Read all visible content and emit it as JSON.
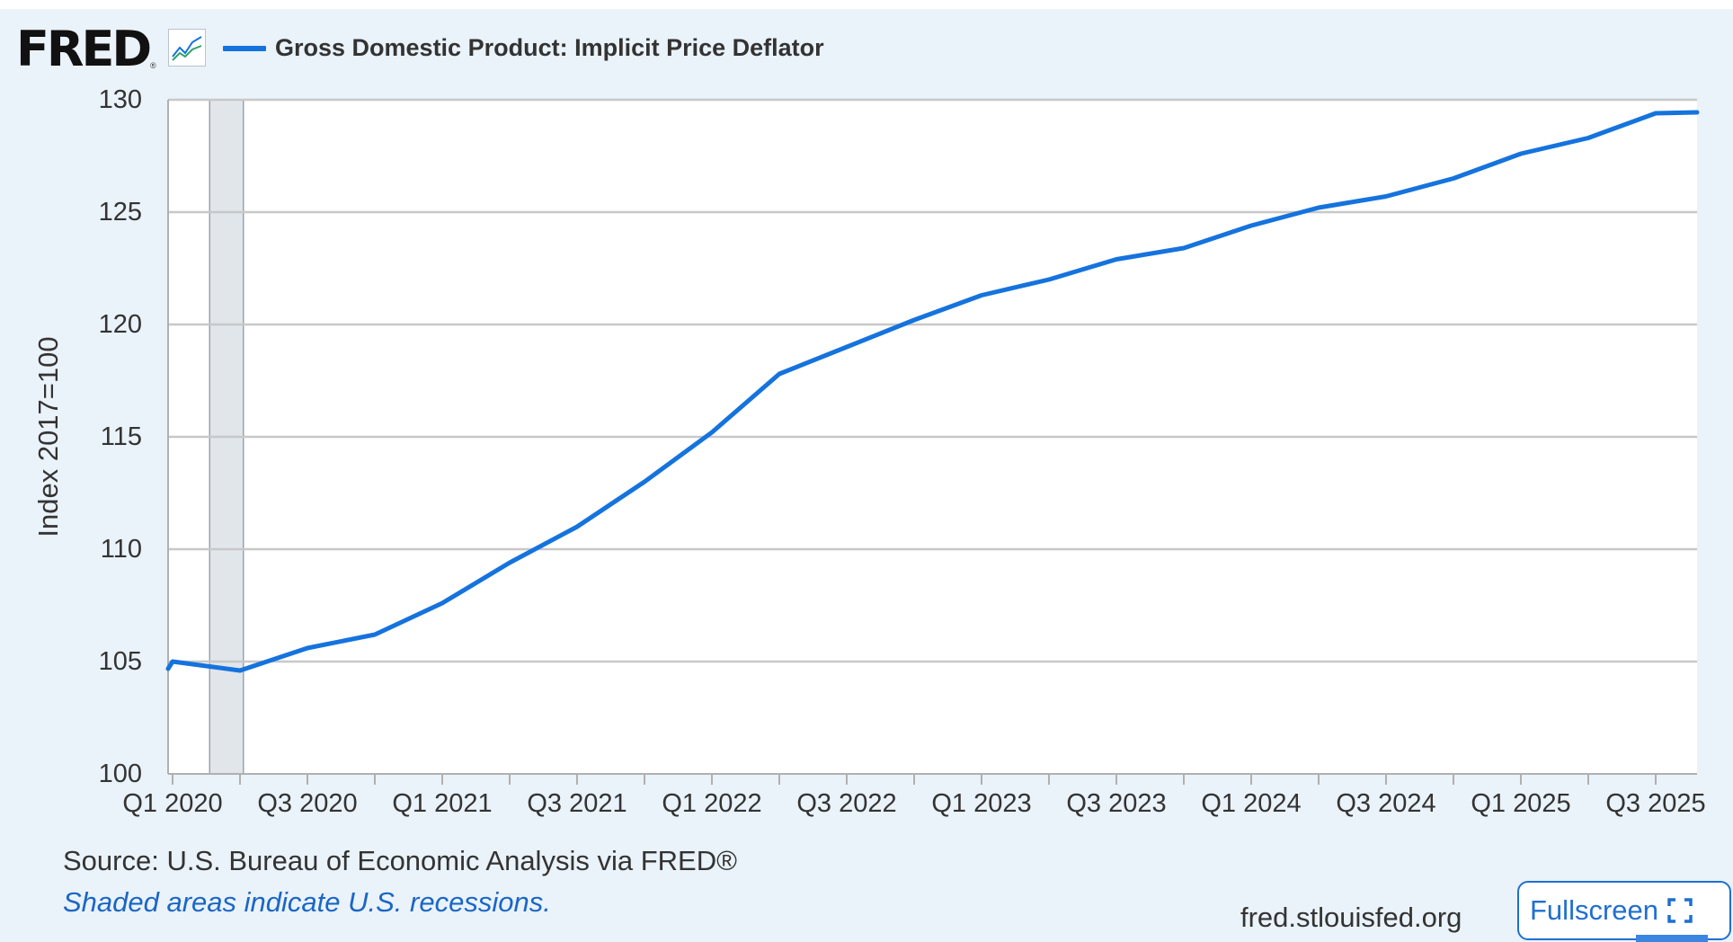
{
  "header": {
    "logo_text": "FRED",
    "logo_reg": "®",
    "graph_icon": "line-chart-icon",
    "legend_label": "Gross Domestic Product: Implicit Price Deflator",
    "series_color": "#1573de"
  },
  "footer": {
    "source": "Source: U.S. Bureau of Economic Analysis via FRED®",
    "recession_note": "Shaded areas indicate U.S. recessions.",
    "site": "fred.stlouisfed.org",
    "fullscreen_label": "Fullscreen",
    "fullscreen_icon": "expand-icon"
  },
  "chart_data": {
    "type": "line",
    "title": "",
    "xlabel": "",
    "ylabel": "Index 2017=100",
    "ylim": [
      100,
      130
    ],
    "yticks": [
      100,
      105,
      110,
      115,
      120,
      125,
      130
    ],
    "grid": true,
    "x": [
      "Q1 2020",
      "Q2 2020",
      "Q3 2020",
      "Q4 2020",
      "Q1 2021",
      "Q2 2021",
      "Q3 2021",
      "Q4 2021",
      "Q1 2022",
      "Q2 2022",
      "Q3 2022",
      "Q4 2022",
      "Q1 2023",
      "Q2 2023",
      "Q3 2023",
      "Q4 2023",
      "Q1 2024",
      "Q2 2024",
      "Q3 2024",
      "Q4 2024",
      "Q1 2025",
      "Q2 2025",
      "Q3 2025"
    ],
    "xtick_labels": [
      "Q1 2020",
      "Q3 2020",
      "Q1 2021",
      "Q3 2021",
      "Q1 2022",
      "Q3 2022",
      "Q1 2023",
      "Q3 2023",
      "Q1 2024",
      "Q3 2024",
      "Q1 2025",
      "Q3 2025"
    ],
    "recessions": [
      {
        "start": "Q1 2020",
        "end": "Q2 2020"
      }
    ],
    "series": [
      {
        "name": "Gross Domestic Product: Implicit Price Deflator",
        "color": "#1573de",
        "values": [
          105.0,
          104.6,
          105.6,
          106.2,
          107.6,
          109.4,
          111.0,
          113.0,
          115.2,
          117.8,
          119.0,
          120.2,
          121.3,
          122.0,
          122.9,
          123.4,
          124.4,
          125.2,
          125.7,
          126.5,
          127.6,
          128.3,
          129.4
        ]
      }
    ]
  }
}
